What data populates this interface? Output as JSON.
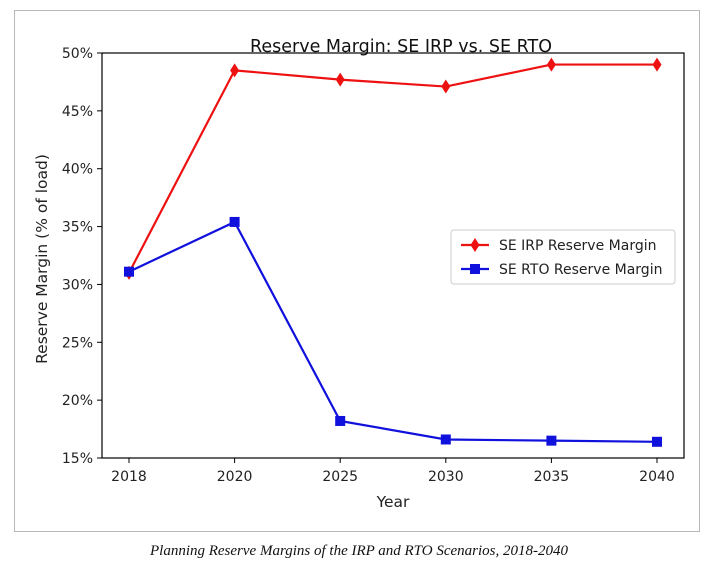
{
  "chart_data": {
    "type": "line",
    "title": "Reserve Margin: SE IRP vs. SE RTO",
    "xlabel": "Year",
    "ylabel": "Reserve Margin (% of load)",
    "categories": [
      "2018",
      "2020",
      "2025",
      "2030",
      "2035",
      "2040"
    ],
    "ylim": [
      15,
      50
    ],
    "yticks": [
      15,
      20,
      25,
      30,
      35,
      40,
      45,
      50
    ],
    "ytick_labels": [
      "15%",
      "20%",
      "25%",
      "30%",
      "35%",
      "40%",
      "45%",
      "50%"
    ],
    "series": [
      {
        "name": "SE IRP Reserve Margin",
        "color": "#ee1111",
        "marker": "diamond",
        "values": [
          31.0,
          48.5,
          47.7,
          47.1,
          49.0,
          49.0
        ]
      },
      {
        "name": "SE RTO Reserve Margin",
        "color": "#1111dd",
        "marker": "square",
        "values": [
          31.1,
          35.4,
          18.2,
          16.6,
          16.5,
          16.4
        ]
      }
    ],
    "grid": false,
    "legend_position": "center-right"
  },
  "caption": "Planning Reserve Margins of the IRP and RTO Scenarios, 2018-2040"
}
